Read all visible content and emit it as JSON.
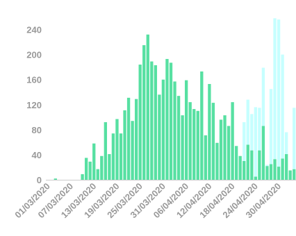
{
  "chart_data": {
    "type": "bar",
    "stacked": true,
    "grid": false,
    "legend": "none",
    "colors": {
      "confirmed": "#57E0A2",
      "pending": "#C6FFFF"
    },
    "ylim": [
      0,
      265
    ],
    "yticks": [
      0,
      40,
      80,
      120,
      160,
      200,
      240
    ],
    "x_tick_labels": [
      "01/03/2020",
      "07/03/2020",
      "13/03/2020",
      "19/03/2020",
      "25/03/2020",
      "31/03/2020",
      "06/04/2020",
      "12/04/2020",
      "18/04/2020",
      "24/04/2020",
      "30/04/2020"
    ],
    "x_tick_step_days": 6,
    "x_first_date": "01/03/2020",
    "categories": [
      "01/03/2020",
      "02/03/2020",
      "03/03/2020",
      "04/03/2020",
      "05/03/2020",
      "06/03/2020",
      "07/03/2020",
      "08/03/2020",
      "09/03/2020",
      "10/03/2020",
      "11/03/2020",
      "12/03/2020",
      "13/03/2020",
      "14/03/2020",
      "15/03/2020",
      "16/03/2020",
      "17/03/2020",
      "18/03/2020",
      "19/03/2020",
      "20/03/2020",
      "21/03/2020",
      "22/03/2020",
      "23/03/2020",
      "24/03/2020",
      "25/03/2020",
      "26/03/2020",
      "27/03/2020",
      "28/03/2020",
      "29/03/2020",
      "30/03/2020",
      "31/03/2020",
      "01/04/2020",
      "02/04/2020",
      "03/04/2020",
      "04/04/2020",
      "05/04/2020",
      "06/04/2020",
      "07/04/2020",
      "08/04/2020",
      "09/04/2020",
      "10/04/2020",
      "11/04/2020",
      "12/04/2020",
      "13/04/2020",
      "14/04/2020",
      "15/04/2020",
      "16/04/2020",
      "17/04/2020",
      "18/04/2020",
      "19/04/2020",
      "20/04/2020",
      "21/04/2020",
      "22/04/2020",
      "23/04/2020",
      "24/04/2020",
      "25/04/2020",
      "26/04/2020",
      "27/04/2020",
      "28/04/2020",
      "29/04/2020",
      "30/04/2020",
      "01/05/2020",
      "02/05/2020",
      "03/05/2020",
      "04/05/2020"
    ],
    "series": [
      {
        "key": "confirmed",
        "values": [
          0,
          0,
          2,
          0,
          0,
          0,
          0,
          0,
          0,
          9,
          35,
          29,
          58,
          17,
          38,
          92,
          41,
          74,
          97,
          74,
          111,
          131,
          94,
          129,
          184,
          215,
          232,
          189,
          183,
          136,
          160,
          193,
          187,
          157,
          134,
          103,
          159,
          124,
          113,
          110,
          173,
          71,
          153,
          123,
          59,
          96,
          103,
          86,
          124,
          54,
          38,
          30,
          56,
          47,
          5,
          47,
          86,
          22,
          25,
          33,
          21,
          34,
          41,
          15,
          17
        ]
      },
      {
        "key": "pending",
        "values": [
          0,
          0,
          0,
          0,
          0,
          0,
          0,
          0,
          0,
          0,
          0,
          0,
          0,
          0,
          0,
          0,
          0,
          0,
          0,
          0,
          0,
          0,
          0,
          0,
          0,
          0,
          0,
          0,
          0,
          0,
          0,
          0,
          0,
          0,
          0,
          0,
          0,
          0,
          0,
          0,
          0,
          0,
          0,
          0,
          0,
          0,
          0,
          0,
          0,
          0,
          0,
          62,
          72,
          58,
          111,
          68,
          93,
          2,
          120,
          225,
          235,
          166,
          35,
          0,
          98
        ]
      }
    ]
  }
}
